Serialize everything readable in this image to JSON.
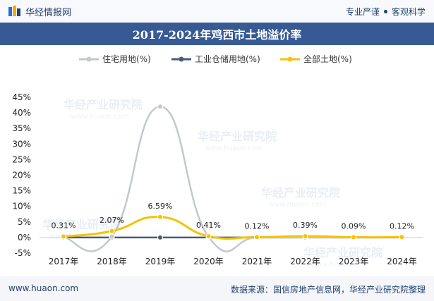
{
  "header": {
    "brand": "华经情报网",
    "tagline_left": "专业严谨",
    "tagline_right": "客观科学"
  },
  "title": "2017-2024年鸡西市土地溢价率",
  "footer": {
    "website": "www.huaon.com",
    "source": "数据来源：国信房地产信息网，华经产业研究院整理"
  },
  "watermark": {
    "text": "华经产业研究院",
    "url": "www.huaon.com"
  },
  "colors": {
    "residential": "#c2c8d2",
    "industrial": "#4a5b79",
    "total": "#f7c200",
    "header_bar": "#375a94",
    "brand": "#24406e"
  },
  "chart_data": {
    "type": "line",
    "categories": [
      "2017年",
      "2018年",
      "2019年",
      "2020年",
      "2021年",
      "2022年",
      "2023年",
      "2024年"
    ],
    "series": [
      {
        "name": "住宅用地(%)",
        "values": [
          0.0,
          0.3,
          42.0,
          0.2,
          0.0,
          0.0,
          0.0,
          0.0
        ],
        "color": "#c2c8d2",
        "smooth": true
      },
      {
        "name": "工业仓储用地(%)",
        "values": [
          0.0,
          0.0,
          0.0,
          0.0,
          0.0,
          0.0,
          0.0,
          0.0
        ],
        "color": "#4a5b79",
        "smooth": false
      },
      {
        "name": "全部土地(%)",
        "values": [
          0.31,
          2.07,
          6.59,
          0.41,
          0.12,
          0.39,
          0.09,
          0.12
        ],
        "color": "#f7c200",
        "smooth": true
      }
    ],
    "data_labels": [
      "0.31%",
      "2.07%",
      "6.59%",
      "0.41%",
      "0.12%",
      "0.39%",
      "0.09%",
      "0.12%"
    ],
    "yticks": [
      "-5%",
      "0%",
      "5%",
      "10%",
      "15%",
      "20%",
      "25%",
      "30%",
      "35%",
      "40%",
      "45%"
    ],
    "ylim": [
      -5,
      45
    ],
    "legend_position": "top"
  }
}
